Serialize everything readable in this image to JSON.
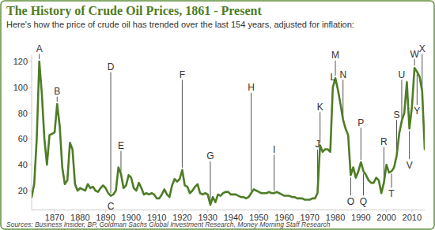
{
  "chart_data": {
    "type": "line",
    "title": "The History of Crude Oil Prices, 1861 - Present",
    "subtitle": "Here's how the price of crude oil has trended over the last 154 years, adjusted for inflation:",
    "source": "Sources: Business Insider, BP, Goldman Sachs Global Investment Research, Money Morning Staff Research",
    "color": "#4e7d25",
    "x": [
      1861,
      1862,
      1863,
      1864,
      1865,
      1866,
      1867,
      1868,
      1869,
      1870,
      1871,
      1872,
      1873,
      1874,
      1875,
      1876,
      1877,
      1878,
      1879,
      1880,
      1881,
      1882,
      1883,
      1884,
      1885,
      1886,
      1887,
      1888,
      1889,
      1890,
      1891,
      1892,
      1893,
      1894,
      1895,
      1896,
      1897,
      1898,
      1899,
      1900,
      1901,
      1902,
      1903,
      1904,
      1905,
      1906,
      1907,
      1908,
      1909,
      1910,
      1911,
      1912,
      1913,
      1914,
      1915,
      1916,
      1917,
      1918,
      1919,
      1920,
      1921,
      1922,
      1923,
      1924,
      1925,
      1926,
      1927,
      1928,
      1929,
      1930,
      1931,
      1932,
      1933,
      1934,
      1935,
      1936,
      1937,
      1938,
      1939,
      1940,
      1941,
      1942,
      1943,
      1944,
      1945,
      1946,
      1947,
      1948,
      1949,
      1950,
      1951,
      1952,
      1953,
      1954,
      1955,
      1956,
      1957,
      1958,
      1959,
      1960,
      1961,
      1962,
      1963,
      1964,
      1965,
      1966,
      1967,
      1968,
      1969,
      1970,
      1971,
      1972,
      1973,
      1974,
      1975,
      1976,
      1977,
      1978,
      1979,
      1980,
      1981,
      1982,
      1983,
      1984,
      1985,
      1986,
      1987,
      1988,
      1989,
      1990,
      1991,
      1992,
      1993,
      1994,
      1995,
      1996,
      1997,
      1998,
      1999,
      2000,
      2001,
      2002,
      2003,
      2004,
      2005,
      2006,
      2007,
      2008,
      2009,
      2010,
      2011,
      2012,
      2013,
      2014,
      2015
    ],
    "values": [
      15,
      25,
      60,
      120,
      95,
      60,
      40,
      63,
      64,
      65,
      87,
      70,
      38,
      25,
      28,
      57,
      52,
      25,
      20,
      22,
      21,
      20,
      25,
      22,
      23,
      20,
      19,
      22,
      24,
      22,
      18,
      16,
      17,
      20,
      38,
      33,
      22,
      24,
      32,
      30,
      22,
      20,
      26,
      22,
      17,
      18,
      17,
      18,
      17,
      14,
      14,
      17,
      21,
      17,
      15,
      24,
      29,
      27,
      29,
      36,
      24,
      23,
      18,
      20,
      23,
      25,
      18,
      17,
      18,
      17,
      9,
      15,
      11,
      17,
      16,
      18,
      19,
      19,
      17,
      17,
      17,
      16,
      15,
      15,
      14,
      15,
      18,
      21,
      20,
      19,
      18,
      18,
      18,
      19,
      18,
      18,
      19,
      18,
      17,
      16,
      16,
      16,
      15,
      15,
      14,
      14,
      14,
      13,
      13,
      13,
      14,
      14,
      18,
      55,
      50,
      52,
      52,
      50,
      100,
      107,
      98,
      87,
      75,
      68,
      63,
      32,
      38,
      30,
      35,
      42,
      35,
      32,
      28,
      26,
      26,
      30,
      28,
      18,
      26,
      40,
      34,
      35,
      38,
      47,
      64,
      74,
      80,
      104,
      68,
      85,
      115,
      112,
      108,
      97,
      52
    ],
    "xlim": [
      1861,
      2015
    ],
    "ylim": [
      5,
      125
    ],
    "xticks": [
      1870,
      1880,
      1890,
      1900,
      1910,
      1920,
      1930,
      1940,
      1950,
      1960,
      1970,
      1980,
      1990,
      2000,
      2010
    ],
    "yticks": [
      20,
      40,
      60,
      80,
      100,
      120
    ],
    "grid": false,
    "annotations": [
      {
        "label": "A",
        "x": 1864,
        "y": 130
      },
      {
        "label": "B",
        "x": 1871,
        "y": 97
      },
      {
        "label": "C",
        "x": 1892,
        "y": 8
      },
      {
        "label": "D",
        "x": 1892,
        "y": 116
      },
      {
        "label": "E",
        "x": 1896,
        "y": 55
      },
      {
        "label": "F",
        "x": 1920,
        "y": 110
      },
      {
        "label": "G",
        "x": 1931,
        "y": 47
      },
      {
        "label": "H",
        "x": 1947,
        "y": 100
      },
      {
        "label": "I",
        "x": 1956,
        "y": 52
      },
      {
        "label": "J",
        "x": 1973,
        "y": 56
      },
      {
        "label": "K",
        "x": 1974,
        "y": 85
      },
      {
        "label": "L",
        "x": 1979,
        "y": 108
      },
      {
        "label": "M",
        "x": 1980,
        "y": 125
      },
      {
        "label": "N",
        "x": 1983,
        "y": 110
      },
      {
        "label": "O",
        "x": 1986,
        "y": 12
      },
      {
        "label": "P",
        "x": 1990,
        "y": 73
      },
      {
        "label": "Q",
        "x": 1991,
        "y": 12
      },
      {
        "label": "R",
        "x": 1999,
        "y": 58
      },
      {
        "label": "S",
        "x": 2004,
        "y": 79
      },
      {
        "label": "T",
        "x": 2002,
        "y": 18
      },
      {
        "label": "U",
        "x": 2006,
        "y": 110
      },
      {
        "label": "V",
        "x": 2009,
        "y": 40
      },
      {
        "label": "W",
        "x": 2011,
        "y": 126
      },
      {
        "label": "X",
        "x": 2014,
        "y": 130
      },
      {
        "label": "Y",
        "x": 2012,
        "y": 82
      }
    ]
  }
}
